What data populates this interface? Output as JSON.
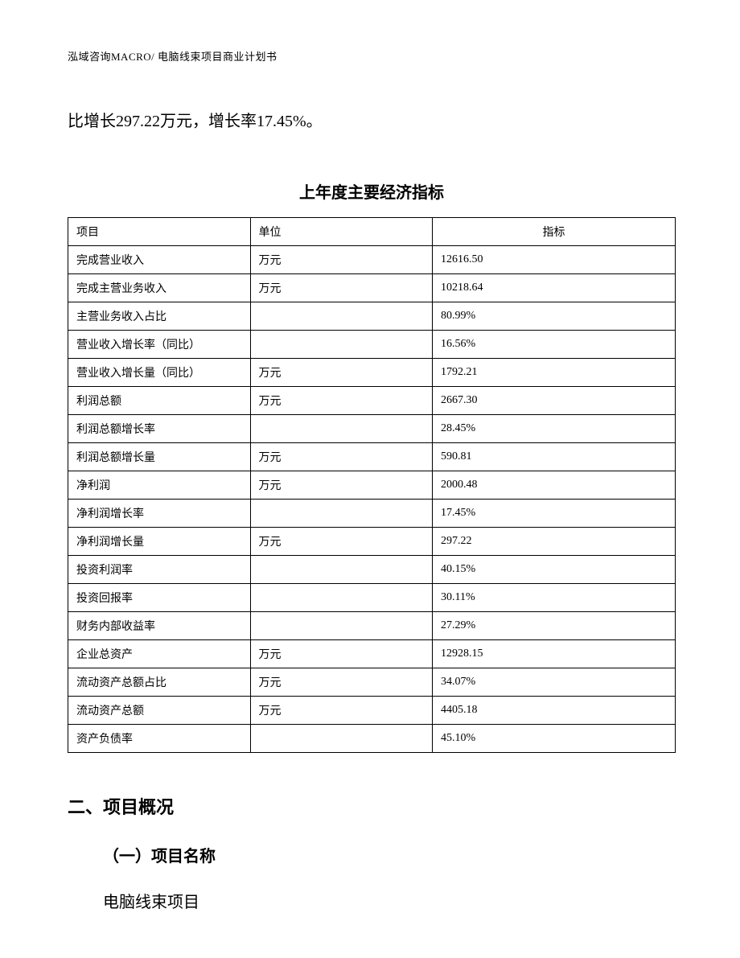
{
  "header": {
    "text": "泓域咨询MACRO/ 电脑线束项目商业计划书"
  },
  "body": {
    "paragraph": "比增长297.22万元，增长率17.45%。"
  },
  "table": {
    "title": "上年度主要经济指标",
    "columns": [
      "项目",
      "单位",
      "指标"
    ],
    "rows": [
      [
        "完成营业收入",
        "万元",
        "12616.50"
      ],
      [
        "完成主营业务收入",
        "万元",
        "10218.64"
      ],
      [
        "主营业务收入占比",
        "",
        "80.99%"
      ],
      [
        "营业收入增长率（同比）",
        "",
        "16.56%"
      ],
      [
        "营业收入增长量（同比）",
        "万元",
        "1792.21"
      ],
      [
        "利润总额",
        "万元",
        "2667.30"
      ],
      [
        "利润总额增长率",
        "",
        "28.45%"
      ],
      [
        "利润总额增长量",
        "万元",
        "590.81"
      ],
      [
        "净利润",
        "万元",
        "2000.48"
      ],
      [
        "净利润增长率",
        "",
        "17.45%"
      ],
      [
        "净利润增长量",
        "万元",
        "297.22"
      ],
      [
        "投资利润率",
        "",
        "40.15%"
      ],
      [
        "投资回报率",
        "",
        "30.11%"
      ],
      [
        "财务内部收益率",
        "",
        "27.29%"
      ],
      [
        "企业总资产",
        "万元",
        "12928.15"
      ],
      [
        "流动资产总额占比",
        "万元",
        "34.07%"
      ],
      [
        "流动资产总额",
        "万元",
        "4405.18"
      ],
      [
        "资产负债率",
        "",
        "45.10%"
      ]
    ]
  },
  "sections": {
    "heading2": "二、项目概况",
    "subheading": "（一）项目名称",
    "content": "电脑线束项目"
  }
}
